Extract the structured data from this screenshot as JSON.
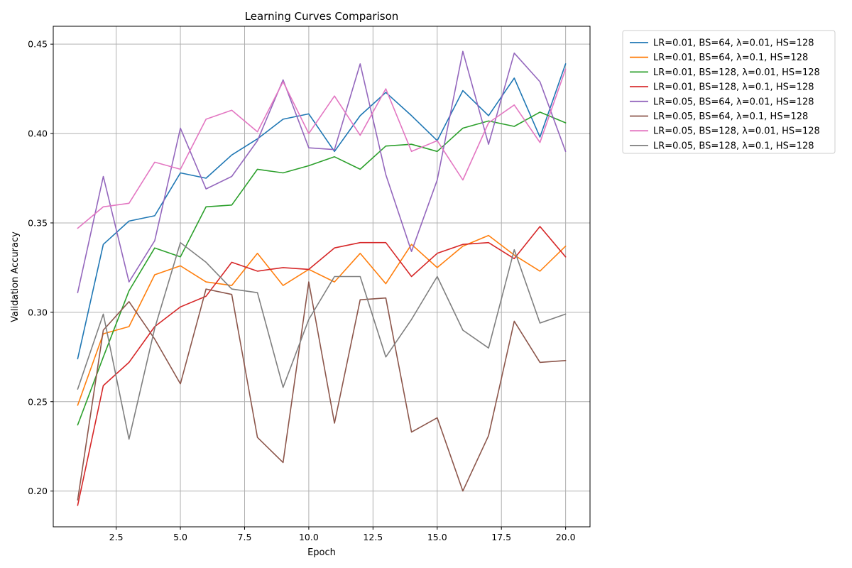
{
  "chart_data": {
    "type": "line",
    "title": "Learning Curves Comparison",
    "xlabel": "Epoch",
    "ylabel": "Validation Accuracy",
    "xlim": [
      0.05,
      20.95
    ],
    "ylim": [
      0.18,
      0.46
    ],
    "xticks": [
      2.5,
      5.0,
      7.5,
      10.0,
      12.5,
      15.0,
      17.5,
      20.0
    ],
    "xtick_labels": [
      "2.5",
      "5.0",
      "7.5",
      "10.0",
      "12.5",
      "15.0",
      "17.5",
      "20.0"
    ],
    "yticks": [
      0.2,
      0.25,
      0.3,
      0.35,
      0.4,
      0.45
    ],
    "ytick_labels": [
      "0.20",
      "0.25",
      "0.30",
      "0.35",
      "0.40",
      "0.45"
    ],
    "grid": true,
    "legend_position": "outside-top-right",
    "x": [
      1,
      2,
      3,
      4,
      5,
      6,
      7,
      8,
      9,
      10,
      11,
      12,
      13,
      14,
      15,
      16,
      17,
      18,
      19,
      20
    ],
    "series": [
      {
        "name": "LR=0.01, BS=64, λ=0.01, HS=128",
        "color": "#1f77b4",
        "values": [
          0.274,
          0.338,
          0.351,
          0.354,
          0.378,
          0.375,
          0.388,
          0.397,
          0.408,
          0.411,
          0.39,
          0.41,
          0.423,
          0.41,
          0.396,
          0.424,
          0.41,
          0.431,
          0.398,
          0.439
        ]
      },
      {
        "name": "LR=0.01, BS=64, λ=0.1, HS=128",
        "color": "#ff7f0e",
        "values": [
          0.248,
          0.288,
          0.292,
          0.321,
          0.326,
          0.317,
          0.315,
          0.333,
          0.315,
          0.324,
          0.317,
          0.333,
          0.316,
          0.338,
          0.325,
          0.337,
          0.343,
          0.332,
          0.323,
          0.337
        ]
      },
      {
        "name": "LR=0.01, BS=128, λ=0.01, HS=128",
        "color": "#2ca02c",
        "values": [
          0.237,
          0.275,
          0.312,
          0.336,
          0.331,
          0.359,
          0.36,
          0.38,
          0.378,
          0.382,
          0.387,
          0.38,
          0.393,
          0.394,
          0.39,
          0.403,
          0.407,
          0.404,
          0.412,
          0.406
        ]
      },
      {
        "name": "LR=0.01, BS=128, λ=0.1, HS=128",
        "color": "#d62728",
        "values": [
          0.192,
          0.259,
          0.272,
          0.292,
          0.303,
          0.309,
          0.328,
          0.323,
          0.325,
          0.324,
          0.336,
          0.339,
          0.339,
          0.32,
          0.333,
          0.338,
          0.339,
          0.33,
          0.348,
          0.331
        ]
      },
      {
        "name": "LR=0.05, BS=64, λ=0.01, HS=128",
        "color": "#9467bd",
        "values": [
          0.311,
          0.376,
          0.317,
          0.34,
          0.403,
          0.369,
          0.376,
          0.396,
          0.43,
          0.392,
          0.391,
          0.439,
          0.377,
          0.334,
          0.374,
          0.446,
          0.394,
          0.445,
          0.429,
          0.39
        ]
      },
      {
        "name": "LR=0.05, BS=64, λ=0.1, HS=128",
        "color": "#8c564b",
        "values": [
          0.195,
          0.29,
          0.306,
          0.285,
          0.26,
          0.313,
          0.31,
          0.23,
          0.216,
          0.317,
          0.238,
          0.307,
          0.308,
          0.233,
          0.241,
          0.2,
          0.231,
          0.295,
          0.272,
          0.273
        ]
      },
      {
        "name": "LR=0.05, BS=128, λ=0.01, HS=128",
        "color": "#e377c2",
        "values": [
          0.347,
          0.359,
          0.361,
          0.384,
          0.38,
          0.408,
          0.413,
          0.401,
          0.429,
          0.4,
          0.421,
          0.399,
          0.425,
          0.39,
          0.396,
          0.374,
          0.406,
          0.416,
          0.395,
          0.436
        ]
      },
      {
        "name": "LR=0.05, BS=128, λ=0.1, HS=128",
        "color": "#7f7f7f",
        "values": [
          0.257,
          0.299,
          0.229,
          0.291,
          0.339,
          0.328,
          0.313,
          0.311,
          0.258,
          0.296,
          0.32,
          0.32,
          0.275,
          0.296,
          0.32,
          0.29,
          0.28,
          0.335,
          0.294,
          0.299
        ]
      }
    ]
  }
}
